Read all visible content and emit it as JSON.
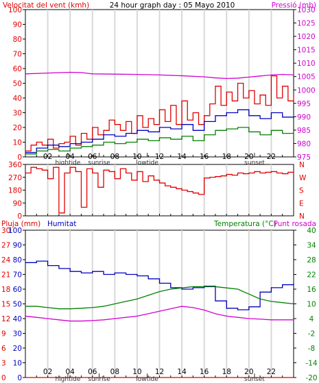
{
  "colors": {
    "wind": "#e00000",
    "pressure": "#d000d0",
    "gust": "#0000c0",
    "wind_avg": "#008000",
    "humidity": "#0000c0",
    "temperature": "#008000",
    "dewpoint": "#d000d0",
    "rain": "#e00000",
    "axis": "#000000",
    "grid": "#d8d8d8",
    "event": "#333333"
  },
  "time_labels": [
    "02",
    "04",
    "06",
    "08",
    "10",
    "12",
    "14",
    "16",
    "18",
    "20",
    "22"
  ],
  "events": [
    {
      "label": "hightide",
      "hour": 3.8
    },
    {
      "label": "sunrise",
      "hour": 6.6
    },
    {
      "label": "lowtide",
      "hour": 10.9
    },
    {
      "label": "sunset",
      "hour": 20.5
    }
  ],
  "chart_data": [
    {
      "type": "line",
      "panel": "wind_pressure",
      "title": "24 hour graph day : 05 Mayo 2010",
      "ylabel_left": "Velocitat del vent (kmh)",
      "ylabel_right": "Pressió (mb)",
      "ylim_left": [
        0,
        100
      ],
      "yticks_left": [
        0,
        10,
        20,
        30,
        40,
        50,
        60,
        70,
        80,
        90,
        100
      ],
      "ylim_right": [
        975,
        1030
      ],
      "yticks_right": [
        975,
        980,
        985,
        990,
        995,
        1000,
        1005,
        1010,
        1015,
        1020,
        1025,
        1030
      ],
      "xlim": [
        0,
        24
      ],
      "grid": true,
      "series": [
        {
          "key": "pressure",
          "axis": "right",
          "x": [
            0,
            2,
            4,
            5,
            6,
            8,
            10,
            12,
            14,
            16,
            17,
            18,
            19,
            20,
            21,
            22,
            23,
            24
          ],
          "y": [
            1006,
            1006.3,
            1006.6,
            1006.5,
            1006,
            1005.9,
            1005.8,
            1005.6,
            1005.3,
            1004.9,
            1004.5,
            1004.3,
            1004.4,
            1004.8,
            1005.2,
            1005.6,
            1005.8,
            1005.6
          ]
        },
        {
          "key": "wind",
          "axis": "left",
          "x": [
            0,
            0.5,
            1,
            1.5,
            2,
            2.5,
            3,
            3.5,
            4,
            4.5,
            5,
            5.5,
            6,
            6.5,
            7,
            7.5,
            8,
            8.5,
            9,
            9.5,
            10,
            10.5,
            11,
            11.5,
            12,
            12.5,
            13,
            13.5,
            14,
            14.5,
            15,
            15.5,
            16,
            16.5,
            17,
            17.5,
            18,
            18.5,
            19,
            19.5,
            20,
            20.5,
            21,
            21.5,
            22,
            22.5,
            23,
            23.5,
            24
          ],
          "y": [
            4,
            8,
            10,
            8,
            12,
            6,
            9,
            10,
            14,
            8,
            16,
            12,
            20,
            15,
            18,
            25,
            22,
            18,
            24,
            16,
            28,
            20,
            26,
            22,
            32,
            24,
            35,
            22,
            38,
            25,
            30,
            22,
            28,
            36,
            48,
            35,
            44,
            38,
            50,
            40,
            45,
            36,
            42,
            35,
            55,
            40,
            48,
            38,
            42
          ]
        },
        {
          "key": "gust",
          "axis": "left",
          "x": [
            0,
            1,
            2,
            3,
            4,
            5,
            6,
            7,
            8,
            9,
            10,
            11,
            12,
            13,
            14,
            15,
            16,
            17,
            18,
            19,
            20,
            21,
            22,
            23,
            24
          ],
          "y": [
            3,
            6,
            8,
            7,
            9,
            10,
            12,
            15,
            14,
            16,
            18,
            17,
            20,
            19,
            22,
            18,
            24,
            28,
            30,
            32,
            28,
            26,
            30,
            27,
            26
          ]
        },
        {
          "key": "wind_avg",
          "axis": "left",
          "x": [
            0,
            1,
            2,
            3,
            4,
            5,
            6,
            7,
            8,
            9,
            10,
            11,
            12,
            13,
            14,
            15,
            16,
            17,
            18,
            19,
            20,
            21,
            22,
            23,
            24
          ],
          "y": [
            2,
            4,
            5,
            4,
            6,
            7,
            8,
            10,
            9,
            10,
            12,
            11,
            13,
            12,
            14,
            11,
            15,
            18,
            19,
            20,
            17,
            15,
            18,
            16,
            15
          ]
        }
      ]
    },
    {
      "type": "line",
      "panel": "wind_direction",
      "ylim": [
        0,
        360
      ],
      "yticks": [
        0,
        90,
        180,
        270,
        360
      ],
      "compass": [
        "N",
        "W",
        "S",
        "E",
        "N"
      ],
      "xlim": [
        0,
        24
      ],
      "series": [
        {
          "key": "wind",
          "name": "direction",
          "x": [
            0,
            0.5,
            1,
            1.5,
            2,
            2.5,
            3,
            3.5,
            4,
            4.5,
            5,
            5.5,
            6,
            6.5,
            7,
            7.5,
            8,
            8.5,
            9,
            9.5,
            10,
            10.5,
            11,
            11.5,
            12,
            12.5,
            13,
            13.5,
            14,
            14.5,
            15,
            15.5,
            16,
            16.5,
            17,
            17.5,
            18,
            18.5,
            19,
            19.5,
            20,
            20.5,
            21,
            21.5,
            22,
            22.5,
            23,
            23.5,
            24
          ],
          "y": [
            300,
            340,
            330,
            320,
            260,
            340,
            20,
            300,
            340,
            310,
            60,
            330,
            300,
            200,
            320,
            310,
            260,
            330,
            300,
            250,
            310,
            240,
            280,
            250,
            230,
            210,
            200,
            190,
            180,
            170,
            160,
            150,
            265,
            270,
            275,
            280,
            290,
            285,
            300,
            295,
            300,
            310,
            300,
            305,
            310,
            300,
            295,
            305,
            300
          ]
        }
      ]
    },
    {
      "type": "line",
      "panel": "humidity_temperature",
      "ylabel_left_1": "Pluja (mm)",
      "ylabel_left_2": "Humitat",
      "ylabel_right": "Temperatura (°C)",
      "ylabel_right_2": "Punt rosada",
      "ylim_humidity": [
        0,
        100
      ],
      "yticks_humidity": [
        0,
        10,
        20,
        30,
        40,
        50,
        60,
        70,
        80,
        90,
        100
      ],
      "ylim_rain": [
        0,
        30
      ],
      "yticks_rain": [
        0,
        3,
        6,
        9,
        12,
        15,
        18,
        21,
        24,
        27,
        30
      ],
      "ylim_temp": [
        -20,
        40
      ],
      "yticks_temp": [
        -20,
        -14,
        -8,
        -2,
        4,
        10,
        16,
        22,
        28,
        34,
        40
      ],
      "xlim": [
        0,
        24
      ],
      "grid": true,
      "series": [
        {
          "key": "humidity",
          "axis": "humidity",
          "x": [
            0,
            1,
            2,
            3,
            4,
            5,
            6,
            7,
            8,
            9,
            10,
            11,
            12,
            13,
            14,
            15,
            16,
            17,
            18,
            19,
            20,
            21,
            22,
            23,
            24
          ],
          "y": [
            78,
            79,
            76,
            74,
            72,
            71,
            72,
            70,
            71,
            70,
            69,
            67,
            64,
            61,
            60,
            61,
            62,
            52,
            47,
            46,
            48,
            58,
            61,
            63,
            64
          ]
        },
        {
          "key": "temperature",
          "axis": "temp",
          "x": [
            0,
            1,
            2,
            3,
            4,
            5,
            6,
            7,
            8,
            9,
            10,
            11,
            12,
            13,
            14,
            15,
            16,
            17,
            18,
            19,
            20,
            21,
            22,
            23,
            24
          ],
          "y": [
            9,
            9,
            8.5,
            8,
            8,
            8.2,
            8.5,
            9,
            10,
            11,
            12,
            13.5,
            15,
            16,
            16.5,
            17,
            17,
            17,
            16.5,
            16,
            14,
            12,
            11,
            10.5,
            10
          ]
        },
        {
          "key": "dewpoint",
          "axis": "temp",
          "x": [
            0,
            1,
            2,
            3,
            4,
            5,
            6,
            7,
            8,
            9,
            10,
            11,
            12,
            13,
            14,
            15,
            16,
            17,
            18,
            19,
            20,
            21,
            22,
            23,
            24
          ],
          "y": [
            5,
            4.5,
            4,
            3.5,
            3,
            3,
            3.2,
            3.5,
            4,
            4.5,
            5,
            6,
            7,
            8,
            9,
            8.5,
            7.5,
            6,
            5,
            4.5,
            4,
            3.8,
            3.5,
            3.5,
            3.5
          ]
        },
        {
          "key": "rain",
          "axis": "rain",
          "x": [
            0,
            24
          ],
          "y": [
            0,
            0
          ]
        }
      ]
    }
  ]
}
